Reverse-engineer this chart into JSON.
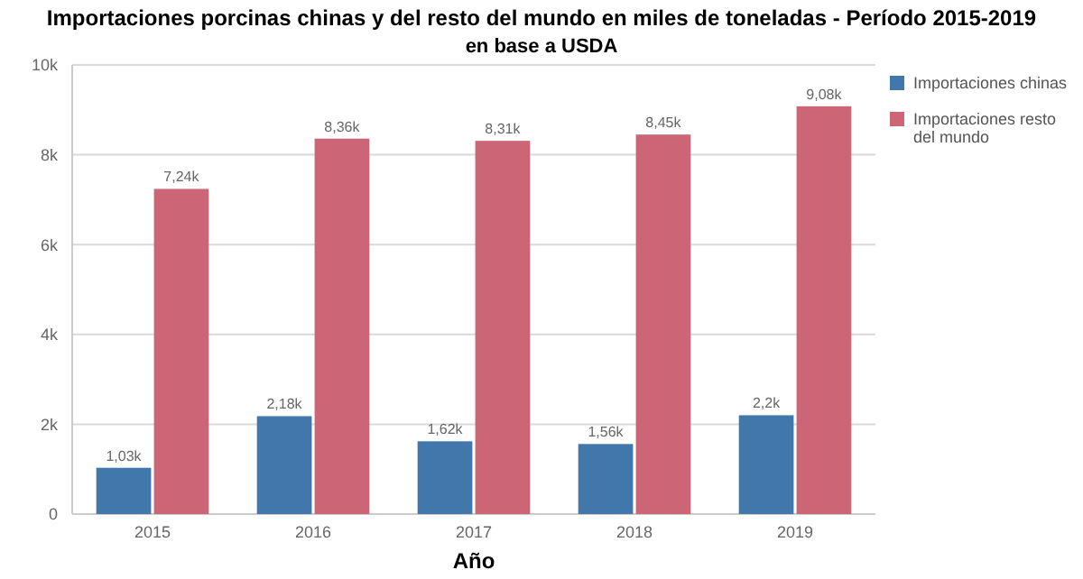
{
  "chart_data": {
    "type": "bar",
    "title": "Importaciones porcinas chinas y del resto del mundo en miles de toneladas - Período 2015-2019",
    "subtitle": "en base a USDA",
    "xlabel": "Año",
    "categories": [
      "2015",
      "2016",
      "2017",
      "2018",
      "2019"
    ],
    "series": [
      {
        "name": "Importaciones chinas",
        "color": "#4177aa",
        "values": [
          1030,
          2180,
          1620,
          1560,
          2200
        ],
        "value_labels": [
          "1,03k",
          "2,18k",
          "1,62k",
          "1,56k",
          "2,2k"
        ]
      },
      {
        "name": "Importaciones resto del mundo",
        "color": "#cc6677",
        "values": [
          7240,
          8360,
          8310,
          8450,
          9080
        ],
        "value_labels": [
          "7,24k",
          "8,36k",
          "8,31k",
          "8,45k",
          "9,08k"
        ]
      }
    ],
    "ylim": [
      0,
      10000
    ],
    "yticks": [
      0,
      {
        "value": 2000,
        "label": "2k"
      },
      {
        "value": 4000,
        "label": "4k"
      },
      {
        "value": 6000,
        "label": "6k"
      },
      {
        "value": 8000,
        "label": "8k"
      },
      {
        "value": 10000,
        "label": "10k"
      }
    ],
    "grid": "y",
    "legend": "top right"
  }
}
